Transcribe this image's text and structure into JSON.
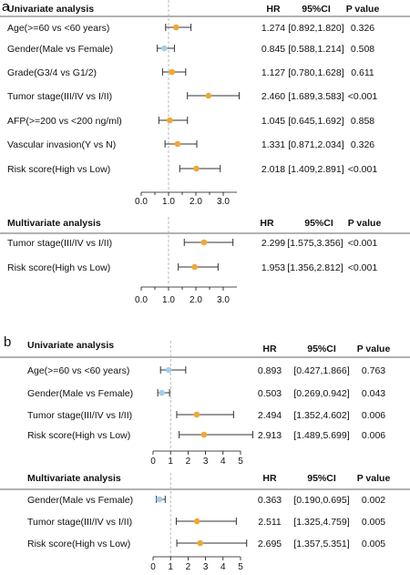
{
  "colors": {
    "point_main": "#f0a830",
    "point_light": "#9fd0ee",
    "errorbar": "#333333",
    "reference_line": "#aaaaaa",
    "separator": "#333333"
  },
  "chart_data": [
    {
      "type": "forest",
      "panel": "a",
      "section": "Univariate analysis",
      "columns": [
        "HR",
        "95%CI",
        "P value"
      ],
      "reference_line": 1,
      "xlim": [
        0,
        3.5
      ],
      "xticks": [
        "0.0",
        "1.0",
        "2.0",
        "3.0"
      ],
      "rows": [
        {
          "label": "Age(>=60 vs <60 years)",
          "hr": 1.274,
          "low": 0.892,
          "high": 1.82,
          "hr_text": "1.274",
          "ci_text": "[0.892,1.820]",
          "p_text": "0.326",
          "color": "#f0a830"
        },
        {
          "label": "Gender(Male vs Female)",
          "hr": 0.845,
          "low": 0.588,
          "high": 1.214,
          "hr_text": "0.845",
          "ci_text": "[0.588,1.214]",
          "p_text": "0.508",
          "color": "#9fd0ee"
        },
        {
          "label": "Grade(G3/4 vs G1/2)",
          "hr": 1.127,
          "low": 0.78,
          "high": 1.628,
          "hr_text": "1.127",
          "ci_text": "[0.780,1.628]",
          "p_text": "0.611",
          "color": "#f0a830"
        },
        {
          "label": "Tumor stage(III/IV vs I/II)",
          "hr": 2.46,
          "low": 1.689,
          "high": 3.583,
          "hr_text": "2.460",
          "ci_text": "[1.689,3.583]",
          "p_text": "<0.001",
          "color": "#f0a830"
        },
        {
          "label": "AFP(>=200 vs <200 ng/ml)",
          "hr": 1.045,
          "low": 0.645,
          "high": 1.692,
          "hr_text": "1.045",
          "ci_text": "[0.645,1.692]",
          "p_text": "0.858",
          "color": "#f0a830"
        },
        {
          "label": "Vascular invasion(Y vs N)",
          "hr": 1.331,
          "low": 0.871,
          "high": 2.034,
          "hr_text": "1.331",
          "ci_text": "[0.871,2.034]",
          "p_text": "0.326",
          "color": "#f0a830"
        },
        {
          "label": "Risk score(High vs Low)",
          "hr": 2.018,
          "low": 1.409,
          "high": 2.891,
          "hr_text": "2.018",
          "ci_text": "[1.409,2.891]",
          "p_text": "<0.001",
          "color": "#f0a830"
        }
      ]
    },
    {
      "type": "forest",
      "panel": "a",
      "section": "Multivariate analysis",
      "columns": [
        "HR",
        "95%CI",
        "P value"
      ],
      "reference_line": 1,
      "xlim": [
        0,
        3.5
      ],
      "xticks": [
        "0.0",
        "1.0",
        "2.0",
        "3.0"
      ],
      "rows": [
        {
          "label": "Tumor stage(III/IV vs I/II)",
          "hr": 2.299,
          "low": 1.575,
          "high": 3.356,
          "hr_text": "2.299",
          "ci_text": "[1.575,3.356]",
          "p_text": "<0.001",
          "color": "#f0a830"
        },
        {
          "label": "Risk score(High vs Low)",
          "hr": 1.953,
          "low": 1.356,
          "high": 2.812,
          "hr_text": "1.953",
          "ci_text": "[1.356,2.812]",
          "p_text": "<0.001",
          "color": "#f0a830"
        }
      ]
    },
    {
      "type": "forest",
      "panel": "b",
      "section": "Univariate analysis",
      "columns": [
        "HR",
        "95%CI",
        "P value"
      ],
      "reference_line": 1,
      "xlim": [
        0,
        5
      ],
      "xticks": [
        "0",
        "1",
        "2",
        "3",
        "4",
        "5"
      ],
      "rows": [
        {
          "label": "Age(>=60 vs <60 years)",
          "hr": 0.893,
          "low": 0.427,
          "high": 1.866,
          "hr_text": "0.893",
          "ci_text": "[0.427,1.866]",
          "p_text": "0.763",
          "color": "#9fd0ee"
        },
        {
          "label": "Gender(Male vs Female)",
          "hr": 0.503,
          "low": 0.269,
          "high": 0.942,
          "hr_text": "0.503",
          "ci_text": "[0.269,0.942]",
          "p_text": "0.043",
          "color": "#9fd0ee"
        },
        {
          "label": "Tumor stage(III/IV vs I/II)",
          "hr": 2.494,
          "low": 1.352,
          "high": 4.602,
          "hr_text": "2.494",
          "ci_text": "[1.352,4.602]",
          "p_text": "0.006",
          "color": "#f0a830"
        },
        {
          "label": "Risk score(High vs Low)",
          "hr": 2.913,
          "low": 1.489,
          "high": 5.699,
          "hr_text": "2.913",
          "ci_text": "[1.489,5.699]",
          "p_text": "0.006",
          "color": "#f0a830"
        }
      ]
    },
    {
      "type": "forest",
      "panel": "b",
      "section": "Multivariate analysis",
      "columns": [
        "HR",
        "95%CI",
        "P value"
      ],
      "reference_line": 1,
      "xlim": [
        0,
        5
      ],
      "xticks": [
        "0",
        "1",
        "2",
        "3",
        "4",
        "5"
      ],
      "rows": [
        {
          "label": "Gender(Male vs Female)",
          "hr": 0.363,
          "low": 0.19,
          "high": 0.695,
          "hr_text": "0.363",
          "ci_text": "[0.190,0.695]",
          "p_text": "0.002",
          "color": "#9fd0ee"
        },
        {
          "label": "Tumor stage(III/IV vs I/II)",
          "hr": 2.511,
          "low": 1.325,
          "high": 4.759,
          "hr_text": "2.511",
          "ci_text": "[1.325,4.759]",
          "p_text": "0.005",
          "color": "#f0a830"
        },
        {
          "label": "Risk score(High vs Low)",
          "hr": 2.695,
          "low": 1.357,
          "high": 5.351,
          "hr_text": "2.695",
          "ci_text": "[1.357,5.351]",
          "p_text": "0.005",
          "color": "#f0a830"
        }
      ]
    }
  ]
}
